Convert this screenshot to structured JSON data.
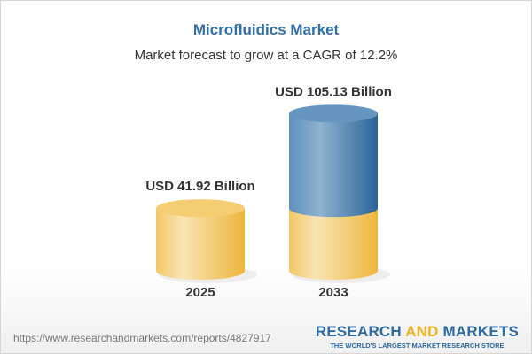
{
  "chart_data": {
    "type": "bar",
    "style": "3d-cylinder",
    "title": "Microfluidics Market",
    "subtitle": "Market forecast to grow at a CAGR of 12.2%",
    "categories": [
      "2025",
      "2033"
    ],
    "values": [
      41.92,
      105.13
    ],
    "data_labels": [
      "USD 41.92 Billion",
      "USD 105.13 Billion"
    ],
    "unit": "USD Billion",
    "colors": {
      "base": "#f2c04e",
      "growth": "#3f7eb3"
    }
  },
  "footer": {
    "url": "https://www.researchandmarkets.com/reports/4827917",
    "logo_part1": "RESEARCH ",
    "logo_part2": "AND",
    "logo_part3": " MARKETS",
    "tagline": "THE WORLD'S LARGEST MARKET RESEARCH STORE"
  }
}
